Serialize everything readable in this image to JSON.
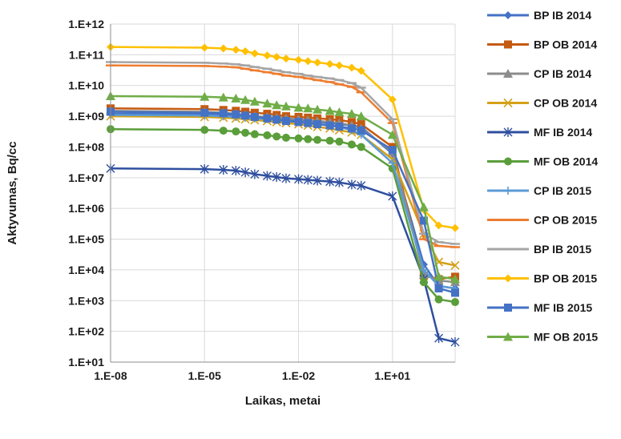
{
  "chart_data": {
    "type": "line",
    "title": "",
    "xlabel": "Laikas, metai",
    "ylabel": "Aktyvumas, Bq/cc",
    "x_scale": "log",
    "y_scale": "log",
    "xlim": [
      1e-08,
      1000
    ],
    "ylim": [
      10,
      1000000000000.0
    ],
    "x_tick_values": [
      1e-08,
      1e-05,
      0.01,
      10
    ],
    "x_tick_labels": [
      "1.E-08",
      "1.E-05",
      "1.E-02",
      "1.E+01"
    ],
    "y_tick_values": [
      10,
      100,
      1000,
      10000,
      100000,
      1000000,
      10000000,
      100000000,
      1000000000,
      10000000000,
      100000000000,
      1000000000000
    ],
    "y_tick_labels": [
      "1.E+01",
      "1.E+02",
      "1.E+03",
      "1.E+04",
      "1.E+05",
      "1.E+06",
      "1.E+07",
      "1.E+08",
      "1.E+09",
      "1.E+10",
      "1.E+11",
      "1.E+12"
    ],
    "grid": true,
    "legend_position": "right",
    "x": [
      1e-08,
      1e-05,
      4e-05,
      0.0001,
      0.0002,
      0.0004,
      0.001,
      0.002,
      0.004,
      0.01,
      0.02,
      0.04,
      0.1,
      0.2,
      0.5,
      1,
      10,
      100,
      300,
      1000
    ],
    "series": [
      {
        "name": "BP IB 2014",
        "color": "#4472C4",
        "marker": "diamond",
        "values": [
          1200000000.0,
          1150000000.0,
          1100000000.0,
          1050000000.0,
          1000000000.0,
          950000000.0,
          900000000.0,
          850000000.0,
          800000000.0,
          750000000.0,
          700000000.0,
          650000000.0,
          600000000.0,
          550000000.0,
          500000000.0,
          450000000.0,
          60000000.0,
          15000.0,
          3000.0,
          2500.0
        ]
      },
      {
        "name": "BP OB 2014",
        "color": "#C55A11",
        "marker": "square",
        "values": [
          1800000000.0,
          1700000000.0,
          1600000000.0,
          1500000000.0,
          1400000000.0,
          1300000000.0,
          1200000000.0,
          1100000000.0,
          1000000000.0,
          950000000.0,
          900000000.0,
          850000000.0,
          800000000.0,
          750000000.0,
          650000000.0,
          550000000.0,
          100000000.0,
          6500.0,
          5000.0,
          6000.0
        ]
      },
      {
        "name": "CP IB 2014",
        "color": "#8C8C8C",
        "marker": "triangle",
        "values": [
          1500000000.0,
          1400000000.0,
          1300000000.0,
          1200000000.0,
          1100000000.0,
          1000000000.0,
          950000000.0,
          900000000.0,
          850000000.0,
          800000000.0,
          750000000.0,
          700000000.0,
          650000000.0,
          600000000.0,
          500000000.0,
          400000000.0,
          70000000.0,
          7000.0,
          4500.0,
          4000.0
        ]
      },
      {
        "name": "CP OB 2014",
        "color": "#D4A017",
        "marker": "x",
        "values": [
          1000000000.0,
          950000000.0,
          900000000.0,
          850000000.0,
          800000000.0,
          750000000.0,
          700000000.0,
          650000000.0,
          600000000.0,
          550000000.0,
          500000000.0,
          450000000.0,
          400000000.0,
          350000000.0,
          300000000.0,
          250000000.0,
          40000000.0,
          150000.0,
          18000.0,
          14000.0
        ]
      },
      {
        "name": "MF IB 2014",
        "color": "#2F4F9F",
        "marker": "star",
        "values": [
          20000000.0,
          19000000.0,
          18000000.0,
          17000000.0,
          15000000.0,
          13000000.0,
          11500000.0,
          10500000.0,
          9500000.0,
          9000000.0,
          8500000.0,
          8000000.0,
          7500000.0,
          7000000.0,
          6000000.0,
          5500000.0,
          2500000.0,
          5000.0,
          60,
          45
        ]
      },
      {
        "name": "MF OB 2014",
        "color": "#5A9E3A",
        "marker": "circle",
        "values": [
          380000000.0,
          360000000.0,
          340000000.0,
          320000000.0,
          290000000.0,
          260000000.0,
          240000000.0,
          220000000.0,
          200000000.0,
          190000000.0,
          180000000.0,
          170000000.0,
          160000000.0,
          150000000.0,
          120000000.0,
          100000000.0,
          20000000.0,
          4000.0,
          1100.0,
          900
        ]
      },
      {
        "name": "CP IB 2015",
        "color": "#5B9BD5",
        "marker": "plus",
        "values": [
          1100000000.0,
          1050000000.0,
          1000000000.0,
          950000000.0,
          900000000.0,
          850000000.0,
          800000000.0,
          750000000.0,
          700000000.0,
          650000000.0,
          600000000.0,
          550000000.0,
          500000000.0,
          450000000.0,
          350000000.0,
          250000000.0,
          30000000.0,
          10000.0,
          3000.0,
          2500.0
        ]
      },
      {
        "name": "CP OB 2015",
        "color": "#ED7D31",
        "marker": "dash",
        "values": [
          45000000000.0,
          43000000000.0,
          41000000000.0,
          39000000000.0,
          35000000000.0,
          31000000000.0,
          27000000000.0,
          24000000000.0,
          21000000000.0,
          19000000000.0,
          17000000000.0,
          15000000000.0,
          13000000000.0,
          11000000000.0,
          9000000000.0,
          6000000000.0,
          600000000.0,
          100000.0,
          60000.0,
          55000.0
        ]
      },
      {
        "name": "BP IB 2015",
        "color": "#A5A5A5",
        "marker": "dash",
        "values": [
          58000000000.0,
          55000000000.0,
          52000000000.0,
          49000000000.0,
          45000000000.0,
          40000000000.0,
          35000000000.0,
          31000000000.0,
          27000000000.0,
          24000000000.0,
          21000000000.0,
          19000000000.0,
          17000000000.0,
          15000000000.0,
          12000000000.0,
          8500000000.0,
          800000000.0,
          150000.0,
          80000.0,
          70000.0
        ]
      },
      {
        "name": "BP OB 2015",
        "color": "#FFC000",
        "marker": "diamond",
        "values": [
          180000000000.0,
          170000000000.0,
          160000000000.0,
          145000000000.0,
          130000000000.0,
          110000000000.0,
          95000000000.0,
          85000000000.0,
          75000000000.0,
          68000000000.0,
          62000000000.0,
          56000000000.0,
          50000000000.0,
          45000000000.0,
          38000000000.0,
          30000000000.0,
          3500000000.0,
          900000.0,
          280000.0,
          230000.0
        ]
      },
      {
        "name": "MF IB 2015",
        "color": "#4472C4",
        "marker": "square",
        "values": [
          1400000000.0,
          1300000000.0,
          1250000000.0,
          1150000000.0,
          1050000000.0,
          950000000.0,
          850000000.0,
          780000000.0,
          700000000.0,
          650000000.0,
          600000000.0,
          550000000.0,
          500000000.0,
          460000000.0,
          400000000.0,
          350000000.0,
          80000000.0,
          400000.0,
          2500.0,
          1800.0
        ]
      },
      {
        "name": "MF OB 2015",
        "color": "#70AD47",
        "marker": "triangle",
        "values": [
          4500000000.0,
          4300000000.0,
          4100000000.0,
          3800000000.0,
          3400000000.0,
          3000000000.0,
          2600000000.0,
          2300000000.0,
          2100000000.0,
          1900000000.0,
          1800000000.0,
          1650000000.0,
          1500000000.0,
          1350000000.0,
          1200000000.0,
          1000000000.0,
          250000000.0,
          1100000.0,
          6000.0,
          5000.0
        ]
      }
    ]
  }
}
